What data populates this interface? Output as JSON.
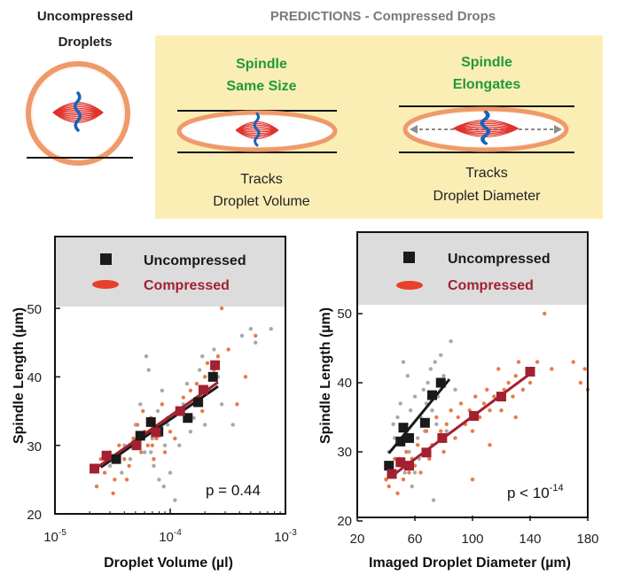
{
  "top_panel": {
    "uncompressed_title_line1": "Uncompressed",
    "uncompressed_title_line2": "Droplets",
    "predictions_title": "PREDICTIONS - Compressed Drops",
    "scenario_a": {
      "title_line1": "Spindle",
      "title_line2": "Same Size",
      "caption_line1": "Tracks",
      "caption_line2": "Droplet Volume"
    },
    "scenario_b": {
      "title_line1": "Spindle",
      "title_line2": "Elongates",
      "caption_line1": "Tracks",
      "caption_line2": "Droplet Diameter"
    },
    "colors": {
      "prediction_bg": "#fbeeb5",
      "green_text": "#1f9a3b",
      "title_gray": "#7a7a7a",
      "droplet_outline": "#ee9a6a",
      "spindle_red": "#e0322a",
      "chromosome_blue": "#1a63b8",
      "arrow_gray": "#8c8c8c"
    }
  },
  "legend": {
    "uncompressed": "Uncompressed",
    "compressed": "Compressed",
    "uncompressed_color": "#1a1a1a",
    "compressed_color": "#a32030",
    "box_color": "#dcdcdc"
  },
  "chart_data": [
    {
      "type": "scatter",
      "xscale": "log",
      "xlim": [
        1e-05,
        0.001
      ],
      "ylim": [
        20,
        50
      ],
      "xlabel": "Droplet Volume (µl)",
      "ylabel": "Spindle Length (µm)",
      "xticks": [
        {
          "value": 1e-05,
          "base": "10",
          "exp": "-5"
        },
        {
          "value": 0.0001,
          "base": "10",
          "exp": "-4"
        },
        {
          "value": 0.001,
          "base": "10",
          "exp": "-3"
        }
      ],
      "yticks": [
        20,
        30,
        40,
        50
      ],
      "annotation": "p = 0.44",
      "series": [
        {
          "name": "Uncompressed",
          "marker": "square",
          "color": "#1a1a1a",
          "points": [
            [
              3.4e-05,
              28.0
            ],
            [
              5.5e-05,
              31.4
            ],
            [
              6.8e-05,
              33.4
            ],
            [
              7.9e-05,
              32.0
            ],
            [
              0.000142,
              34.0
            ],
            [
              0.000175,
              36.3
            ],
            [
              0.000235,
              40.0
            ]
          ],
          "fit": [
            [
              2.5e-05,
              26.8
            ],
            [
              0.00026,
              38.6
            ]
          ]
        },
        {
          "name": "Compressed",
          "marker": "square",
          "color": "#a32030",
          "points": [
            [
              2.2e-05,
              26.6
            ],
            [
              2.8e-05,
              28.5
            ],
            [
              5.1e-05,
              30.0
            ],
            [
              7.5e-05,
              31.9
            ],
            [
              0.000122,
              35.0
            ],
            [
              0.000194,
              38.1
            ],
            [
              0.000245,
              41.7
            ]
          ],
          "fit": [
            [
              2.2e-05,
              26.5
            ],
            [
              0.00026,
              39.2
            ]
          ]
        },
        {
          "name": "Uncompressed droplets (raw)",
          "marker": "dot",
          "color": "#a8a8a8",
          "points": [
            [
              3e-05,
              27
            ],
            [
              3.8e-05,
              26
            ],
            [
              4e-05,
              30
            ],
            [
              4.5e-05,
              28
            ],
            [
              5e-05,
              33
            ],
            [
              5.5e-05,
              36
            ],
            [
              6e-05,
              29
            ],
            [
              6.2e-05,
              43
            ],
            [
              6.5e-05,
              41
            ],
            [
              7e-05,
              31
            ],
            [
              7.2e-05,
              27
            ],
            [
              7.8e-05,
              35
            ],
            [
              8e-05,
              25
            ],
            [
              8.5e-05,
              38
            ],
            [
              9e-05,
              30
            ],
            [
              9.5e-05,
              33
            ],
            [
              0.0001,
              26
            ],
            [
              0.00011,
              22
            ],
            [
              0.00012,
              30
            ],
            [
              0.00013,
              36
            ],
            [
              0.00014,
              39
            ],
            [
              0.00015,
              32
            ],
            [
              0.00016,
              34
            ],
            [
              0.00017,
              37
            ],
            [
              0.00018,
              41
            ],
            [
              0.00019,
              43
            ],
            [
              0.0002,
              33
            ],
            [
              0.00022,
              38
            ],
            [
              0.00024,
              44
            ],
            [
              0.00026,
              40
            ],
            [
              0.00028,
              36
            ],
            [
              0.00035,
              33
            ],
            [
              0.00042,
              46
            ],
            [
              0.0005,
              47
            ],
            [
              0.00055,
              45
            ],
            [
              0.00075,
              47
            ],
            [
              6.8e-05,
              29
            ],
            [
              8.8e-05,
              24
            ],
            [
              4.8e-05,
              31
            ],
            [
              0.00011,
              31
            ]
          ]
        },
        {
          "name": "Compressed droplets (raw)",
          "marker": "dot",
          "color": "#ea7a45",
          "points": [
            [
              2.1e-05,
              27
            ],
            [
              2.3e-05,
              24
            ],
            [
              2.5e-05,
              28
            ],
            [
              2.7e-05,
              26
            ],
            [
              3e-05,
              29
            ],
            [
              3.3e-05,
              25
            ],
            [
              3.6e-05,
              30
            ],
            [
              4e-05,
              28
            ],
            [
              4.4e-05,
              27
            ],
            [
              4.8e-05,
              31
            ],
            [
              5.2e-05,
              33
            ],
            [
              5.6e-05,
              29
            ],
            [
              6e-05,
              32
            ],
            [
              6.4e-05,
              30
            ],
            [
              6.8e-05,
              34
            ],
            [
              7.2e-05,
              28
            ],
            [
              7.6e-05,
              31
            ],
            [
              8e-05,
              33
            ],
            [
              8.5e-05,
              36
            ],
            [
              9e-05,
              29
            ],
            [
              9.5e-05,
              34
            ],
            [
              0.0001,
              32
            ],
            [
              0.00011,
              31
            ],
            [
              0.00012,
              35
            ],
            [
              0.00013,
              37
            ],
            [
              0.00014,
              34
            ],
            [
              0.00015,
              38
            ],
            [
              0.00016,
              36
            ],
            [
              0.00017,
              39
            ],
            [
              0.00018,
              37
            ],
            [
              0.00019,
              35
            ],
            [
              0.0002,
              40
            ],
            [
              0.00021,
              42
            ],
            [
              0.00022,
              38
            ],
            [
              0.00024,
              41
            ],
            [
              0.00026,
              43
            ],
            [
              0.00028,
              50
            ],
            [
              0.00032,
              44
            ],
            [
              0.00038,
              36
            ],
            [
              0.00045,
              40
            ],
            [
              0.00055,
              46
            ],
            [
              4.2e-05,
              25
            ],
            [
              5.8e-05,
              35
            ],
            [
              7e-05,
              30
            ],
            [
              3.2e-05,
              23
            ]
          ]
        }
      ]
    },
    {
      "type": "scatter",
      "xscale": "linear",
      "xlim": [
        20,
        180
      ],
      "ylim": [
        20,
        50
      ],
      "xlabel": "Imaged Droplet Diameter (µm)",
      "ylabel": "Spindle Length (µm)",
      "xticks": [
        20,
        60,
        100,
        140,
        180
      ],
      "yticks": [
        20,
        30,
        40,
        50
      ],
      "annotation_base": "p < 10",
      "annotation_exp": "-14",
      "series": [
        {
          "name": "Uncompressed",
          "marker": "square",
          "color": "#1a1a1a",
          "points": [
            [
              42,
              28.0
            ],
            [
              50,
              31.5
            ],
            [
              52,
              33.5
            ],
            [
              56,
              32.0
            ],
            [
              67,
              34.2
            ],
            [
              72,
              38.2
            ],
            [
              78,
              40.0
            ]
          ],
          "fit": [
            [
              42,
              29.8
            ],
            [
              84,
              40.5
            ]
          ]
        },
        {
          "name": "Compressed",
          "marker": "square",
          "color": "#a32030",
          "points": [
            [
              44,
              26.8
            ],
            [
              50,
              28.5
            ],
            [
              56,
              28.0
            ],
            [
              68,
              29.9
            ],
            [
              79,
              32.0
            ],
            [
              101,
              35.2
            ],
            [
              120,
              38.0
            ],
            [
              140,
              41.6
            ]
          ],
          "fit": [
            [
              44,
              26.5
            ],
            [
              140,
              41.3
            ]
          ]
        },
        {
          "name": "Uncompressed droplets (raw)",
          "marker": "dot",
          "color": "#a8a8a8",
          "points": [
            [
              40,
              26
            ],
            [
              42,
              30
            ],
            [
              44,
              28
            ],
            [
              46,
              32
            ],
            [
              47,
              27
            ],
            [
              48,
              35
            ],
            [
              49,
              29
            ],
            [
              50,
              37
            ],
            [
              51,
              31
            ],
            [
              52,
              43
            ],
            [
              53,
              27
            ],
            [
              54,
              33
            ],
            [
              55,
              41
            ],
            [
              56,
              30
            ],
            [
              57,
              36
            ],
            [
              58,
              25
            ],
            [
              60,
              38
            ],
            [
              62,
              32
            ],
            [
              63,
              29
            ],
            [
              64,
              35
            ],
            [
              66,
              39
            ],
            [
              67,
              33
            ],
            [
              68,
              37
            ],
            [
              69,
              40
            ],
            [
              70,
              30
            ],
            [
              71,
              42
            ],
            [
              72,
              36
            ],
            [
              73,
              23
            ],
            [
              74,
              43
            ],
            [
              75,
              34
            ],
            [
              76,
              38
            ],
            [
              78,
              44
            ],
            [
              80,
              41
            ],
            [
              82,
              33
            ],
            [
              85,
              46
            ],
            [
              88,
              39
            ],
            [
              60,
              27
            ],
            [
              45,
              34
            ]
          ]
        },
        {
          "name": "Compressed droplets (raw)",
          "marker": "dot",
          "color": "#ea7a45",
          "points": [
            [
              40,
              26
            ],
            [
              42,
              25
            ],
            [
              44,
              27
            ],
            [
              46,
              29
            ],
            [
              48,
              24
            ],
            [
              50,
              28
            ],
            [
              52,
              26
            ],
            [
              54,
              30
            ],
            [
              56,
              27
            ],
            [
              58,
              29
            ],
            [
              60,
              28
            ],
            [
              62,
              31
            ],
            [
              64,
              27
            ],
            [
              66,
              30
            ],
            [
              68,
              33
            ],
            [
              70,
              29
            ],
            [
              72,
              31
            ],
            [
              75,
              35
            ],
            [
              78,
              33
            ],
            [
              80,
              30
            ],
            [
              82,
              34
            ],
            [
              85,
              36
            ],
            [
              88,
              32
            ],
            [
              90,
              35
            ],
            [
              92,
              37
            ],
            [
              95,
              34
            ],
            [
              98,
              36
            ],
            [
              100,
              33
            ],
            [
              102,
              38
            ],
            [
              105,
              35
            ],
            [
              108,
              37
            ],
            [
              110,
              39
            ],
            [
              112,
              36
            ],
            [
              115,
              38
            ],
            [
              118,
              42
            ],
            [
              120,
              36
            ],
            [
              122,
              39
            ],
            [
              125,
              40
            ],
            [
              128,
              38
            ],
            [
              130,
              41
            ],
            [
              132,
              43
            ],
            [
              135,
              39
            ],
            [
              138,
              42
            ],
            [
              140,
              40
            ],
            [
              145,
              43
            ],
            [
              150,
              50
            ],
            [
              155,
              42
            ],
            [
              170,
              43
            ],
            [
              175,
              40
            ],
            [
              178,
              42
            ],
            [
              180,
              39
            ],
            [
              100,
              26
            ],
            [
              112,
              31
            ],
            [
              130,
              35
            ]
          ]
        }
      ]
    }
  ]
}
